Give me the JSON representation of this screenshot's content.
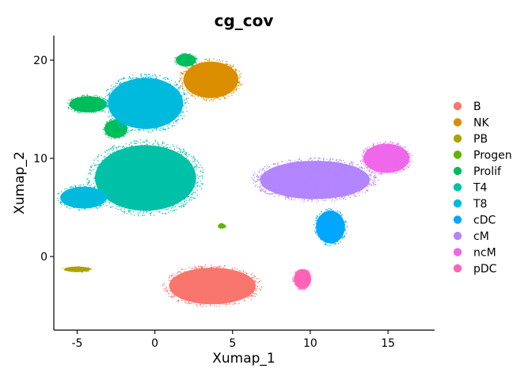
{
  "chart_data": {
    "type": "scatter",
    "title": "cg_cov",
    "xlabel": "Xumap_1",
    "ylabel": "Xumap_2",
    "xlim": [
      -6.5,
      18
    ],
    "ylim": [
      -7.5,
      22.5
    ],
    "xticks": [
      -5,
      0,
      5,
      10,
      15
    ],
    "yticks": [
      0,
      10,
      20
    ],
    "grid": false,
    "legend_position": "right",
    "series": [
      {
        "name": "B",
        "color": "#F8766D",
        "regions": [
          {
            "cx": 3.7,
            "cy": -3.0,
            "rx": 3.0,
            "ry": 2.0
          }
        ]
      },
      {
        "name": "NK",
        "color": "#DB8E00",
        "regions": [
          {
            "cx": 3.6,
            "cy": 18.0,
            "rx": 1.9,
            "ry": 2.0
          }
        ]
      },
      {
        "name": "PB",
        "color": "#AEA200",
        "regions": [
          {
            "cx": -5.0,
            "cy": -1.3,
            "rx": 0.9,
            "ry": 0.3
          }
        ]
      },
      {
        "name": "Progen",
        "color": "#64B200",
        "regions": [
          {
            "cx": 4.3,
            "cy": 3.1,
            "rx": 0.25,
            "ry": 0.25
          }
        ]
      },
      {
        "name": "Prolif",
        "color": "#00BD5C",
        "regions": [
          {
            "cx": -4.3,
            "cy": 15.5,
            "rx": 1.3,
            "ry": 0.9
          },
          {
            "cx": 2.0,
            "cy": 20.0,
            "rx": 0.7,
            "ry": 0.7
          },
          {
            "cx": -2.5,
            "cy": 13.0,
            "rx": 0.8,
            "ry": 1.0
          }
        ]
      },
      {
        "name": "T4",
        "color": "#00C1A7",
        "regions": [
          {
            "cx": -0.6,
            "cy": 8.0,
            "rx": 3.5,
            "ry": 3.6
          }
        ]
      },
      {
        "name": "T8",
        "color": "#00BADE",
        "regions": [
          {
            "cx": -0.6,
            "cy": 15.6,
            "rx": 2.6,
            "ry": 2.8
          },
          {
            "cx": -4.6,
            "cy": 6.0,
            "rx": 1.6,
            "ry": 1.2
          }
        ]
      },
      {
        "name": "cDC",
        "color": "#00A6FF",
        "regions": [
          {
            "cx": 11.3,
            "cy": 3.0,
            "rx": 1.0,
            "ry": 1.8
          }
        ]
      },
      {
        "name": "cM",
        "color": "#B385FF",
        "regions": [
          {
            "cx": 10.3,
            "cy": 7.8,
            "rx": 3.8,
            "ry": 2.1
          }
        ]
      },
      {
        "name": "ncM",
        "color": "#EF67EB",
        "regions": [
          {
            "cx": 14.9,
            "cy": 10.0,
            "rx": 1.6,
            "ry": 1.6
          }
        ]
      },
      {
        "name": "pDC",
        "color": "#FF63B6",
        "regions": [
          {
            "cx": 9.5,
            "cy": -2.3,
            "rx": 0.6,
            "ry": 1.1
          }
        ]
      }
    ]
  }
}
